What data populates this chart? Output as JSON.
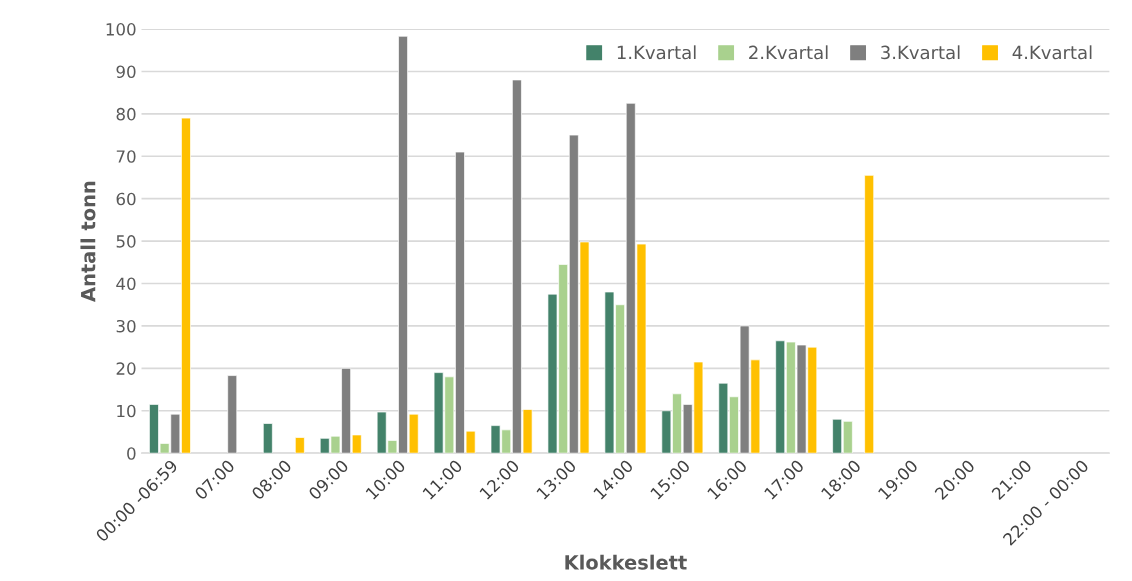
{
  "chart_data": {
    "type": "bar",
    "xlabel": "Klokkeslett",
    "ylabel": "Antall tonn",
    "categories": [
      "00:00 -06:59",
      "07:00",
      "08:00",
      "09:00",
      "10:00",
      "11:00",
      "12:00",
      "13:00",
      "14:00",
      "15:00",
      "16:00",
      "17:00",
      "18:00",
      "19:00",
      "20:00",
      "21:00",
      "22:00 - 00:00"
    ],
    "series": [
      {
        "name": "1.Kvartal",
        "color": "#43826a",
        "values": [
          11.5,
          null,
          7,
          3.5,
          9.7,
          19,
          6.5,
          37.5,
          38,
          10,
          16.5,
          26.5,
          8,
          null,
          null,
          null,
          null
        ]
      },
      {
        "name": "2.Kvartal",
        "color": "#a9d18e",
        "values": [
          2.3,
          null,
          null,
          4,
          3,
          18,
          5.5,
          44.5,
          35,
          14,
          13.3,
          26.2,
          7.5,
          null,
          null,
          null,
          null
        ]
      },
      {
        "name": "3.Kvartal",
        "color": "#7f7f7f",
        "values": [
          9.2,
          18.3,
          null,
          20,
          98.3,
          71,
          88,
          75,
          82.5,
          11.5,
          30,
          25.5,
          null,
          null,
          null,
          null,
          null
        ]
      },
      {
        "name": "4.Kvartal",
        "color": "#ffc000",
        "values": [
          79,
          null,
          3.7,
          4.3,
          9.2,
          5.2,
          10.3,
          49.8,
          49.3,
          21.5,
          22,
          25,
          65.5,
          null,
          null,
          null,
          null
        ]
      }
    ],
    "ylim": [
      0,
      100
    ],
    "yticks": [
      0,
      10,
      20,
      30,
      40,
      50,
      60,
      70,
      80,
      90,
      100
    ],
    "grid": "y",
    "legend": "top right"
  }
}
